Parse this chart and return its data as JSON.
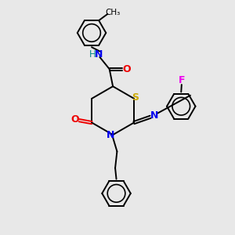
{
  "bg_color": "#e8e8e8",
  "bond_color": "#000000",
  "S_color": "#ccaa00",
  "N_color": "#0000ee",
  "O_color": "#ee0000",
  "F_color": "#ee00ee",
  "H_color": "#008888",
  "lw": 1.4,
  "ring_r": 0.62,
  "xlim": [
    0,
    10
  ],
  "ylim": [
    0,
    10
  ]
}
